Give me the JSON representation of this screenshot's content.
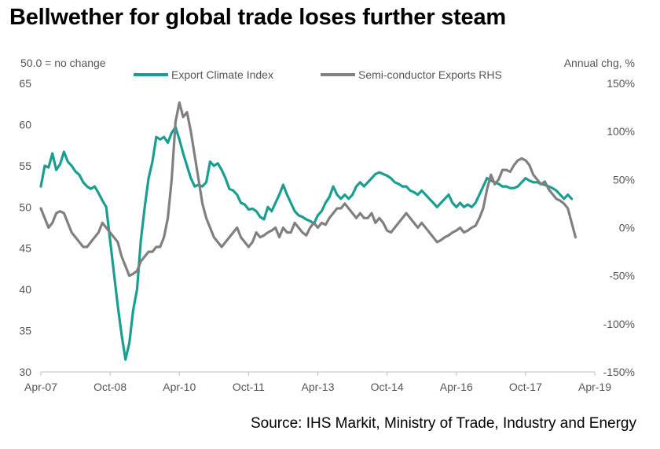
{
  "title": "Bellwether for global trade loses further steam",
  "source": "Source: IHS Markit, Ministry of Trade, Industry and Energy",
  "chart_data": {
    "type": "line",
    "left_axis_note": "50.0 = no change",
    "right_axis_note": "Annual chg, %",
    "x_ticks": [
      "Apr-07",
      "Oct-08",
      "Apr-10",
      "Oct-11",
      "Apr-13",
      "Oct-14",
      "Apr-16",
      "Oct-17",
      "Apr-19"
    ],
    "x_tick_months": [
      0,
      18,
      36,
      54,
      72,
      90,
      108,
      126,
      144
    ],
    "xlim": [
      0,
      144
    ],
    "y_left": {
      "ticks": [
        30,
        35,
        40,
        45,
        50,
        55,
        60,
        65
      ],
      "ylim": [
        30,
        65
      ]
    },
    "y_right": {
      "ticks": [
        "150%",
        "100%",
        "50%",
        "0%",
        "-50%",
        "-100%",
        "-150%"
      ],
      "tick_values": [
        150,
        100,
        50,
        0,
        -50,
        -100,
        -150
      ],
      "ylim": [
        -150,
        150
      ]
    },
    "series": [
      {
        "name": "Export Climate Index",
        "axis": "left",
        "color": "#1a9e8f",
        "start_month": 0,
        "values": [
          52.5,
          55.0,
          54.8,
          56.5,
          54.5,
          55.2,
          56.7,
          55.5,
          55.0,
          54.3,
          53.9,
          53.0,
          52.5,
          52.2,
          52.5,
          51.7,
          50.8,
          50.0,
          46.0,
          42.0,
          38.0,
          34.5,
          31.5,
          33.5,
          37.5,
          40.0,
          46.0,
          50.0,
          53.5,
          55.5,
          58.5,
          58.2,
          58.5,
          57.8,
          59.0,
          59.7,
          58.2,
          56.5,
          55.0,
          53.5,
          52.5,
          52.7,
          52.5,
          53.0,
          55.5,
          55.0,
          55.3,
          54.5,
          53.5,
          52.2,
          52.0,
          51.5,
          50.5,
          50.3,
          49.7,
          49.8,
          49.5,
          48.8,
          48.5,
          50.0,
          49.5,
          50.5,
          51.5,
          52.7,
          51.5,
          50.5,
          49.5,
          49.0,
          48.8,
          48.5,
          48.3,
          48.0,
          49.0,
          49.5,
          50.5,
          51.2,
          52.5,
          51.5,
          51.0,
          51.5,
          51.0,
          51.5,
          52.5,
          53.0,
          52.5,
          53.0,
          53.5,
          54.0,
          54.2,
          54.0,
          53.8,
          53.5,
          53.0,
          52.8,
          52.5,
          52.5,
          52.0,
          51.8,
          51.5,
          52.0,
          51.5,
          51.0,
          50.5,
          50.0,
          50.5,
          51.0,
          51.5,
          50.5,
          50.0,
          50.5,
          50.0,
          50.3,
          50.0,
          50.5,
          51.5,
          52.5,
          53.5,
          53.2,
          53.0,
          52.8,
          52.5,
          52.5,
          52.3,
          52.3,
          52.5,
          53.0,
          53.5,
          53.2,
          53.0,
          53.0,
          52.8,
          52.7,
          52.5,
          52.3,
          52.0,
          51.5,
          51.0,
          51.5,
          51.0
        ]
      },
      {
        "name": "Semi-conductor Exports RHS",
        "axis": "right",
        "color": "#808080",
        "start_month": 0,
        "values": [
          20,
          10,
          0,
          5,
          15,
          17,
          15,
          5,
          -5,
          -10,
          -15,
          -20,
          -20,
          -15,
          -10,
          -5,
          5,
          0,
          -5,
          -10,
          -15,
          -30,
          -40,
          -50,
          -48,
          -45,
          -35,
          -30,
          -25,
          -25,
          -20,
          -20,
          -10,
          10,
          50,
          110,
          130,
          115,
          120,
          100,
          75,
          50,
          25,
          10,
          0,
          -10,
          -15,
          -20,
          -15,
          -10,
          -5,
          0,
          -10,
          -15,
          -20,
          -15,
          -5,
          -10,
          -8,
          -5,
          -3,
          0,
          -10,
          0,
          -5,
          -5,
          5,
          0,
          -5,
          -8,
          0,
          5,
          0,
          5,
          3,
          10,
          15,
          20,
          20,
          25,
          20,
          15,
          10,
          15,
          10,
          10,
          15,
          5,
          10,
          5,
          -3,
          -5,
          0,
          5,
          10,
          15,
          10,
          5,
          0,
          5,
          0,
          -5,
          -10,
          -15,
          -13,
          -10,
          -8,
          -5,
          -3,
          0,
          -5,
          -3,
          0,
          2,
          10,
          20,
          40,
          55,
          45,
          50,
          60,
          60,
          58,
          65,
          70,
          72,
          70,
          65,
          55,
          50,
          45,
          48,
          40,
          35,
          30,
          28,
          25,
          20,
          5,
          -10
        ]
      }
    ]
  }
}
